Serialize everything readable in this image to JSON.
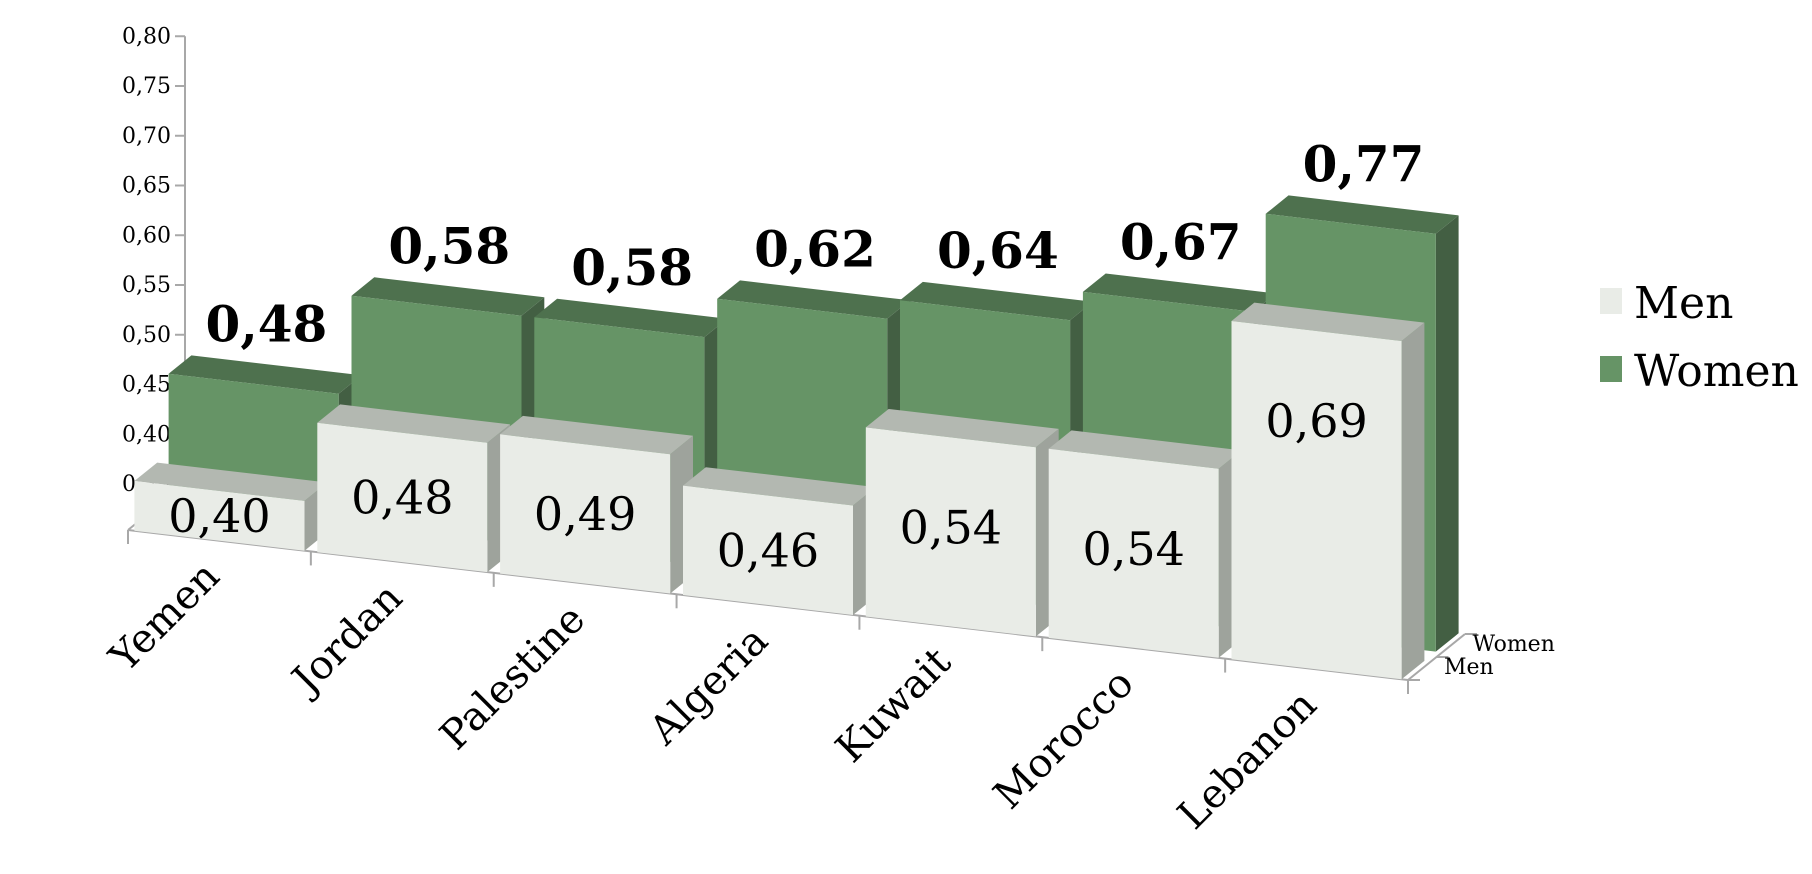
{
  "chart_data": {
    "type": "bar",
    "categories": [
      "Yemen",
      "Jordan",
      "Palestine",
      "Algeria",
      "Kuwait",
      "Morocco",
      "Lebanon"
    ],
    "series": [
      {
        "name": "Men",
        "values": [
          0.4,
          0.48,
          0.49,
          0.46,
          0.54,
          0.54,
          0.69
        ],
        "labels": [
          "0,40",
          "0,48",
          "0,49",
          "0,46",
          "0,54",
          "0,54",
          "0,69"
        ]
      },
      {
        "name": "Women",
        "values": [
          0.48,
          0.58,
          0.58,
          0.62,
          0.64,
          0.67,
          0.77
        ],
        "labels": [
          "0,48",
          "0,58",
          "0,58",
          "0,62",
          "0,64",
          "0,67",
          "0,77"
        ]
      }
    ],
    "ylim": [
      0.35,
      0.8
    ],
    "yticks": [
      "0,35",
      "0,40",
      "0,45",
      "0,50",
      "0,55",
      "0,60",
      "0,65",
      "0,70",
      "0,75",
      "0,80"
    ],
    "depth_axis_labels": [
      "Women",
      "Men"
    ],
    "legend": {
      "position": "right",
      "entries": [
        "Men",
        "Women"
      ]
    },
    "colors": {
      "men_front": "#e9ece7",
      "men_top": "#b3b8b1",
      "men_side": "#9ea39c",
      "women_front": "#669466",
      "women_top": "#4e714e",
      "women_side": "#435f43",
      "axis": "#a8a8a8",
      "legend_men": "#e9ece7",
      "legend_women": "#669466"
    }
  }
}
